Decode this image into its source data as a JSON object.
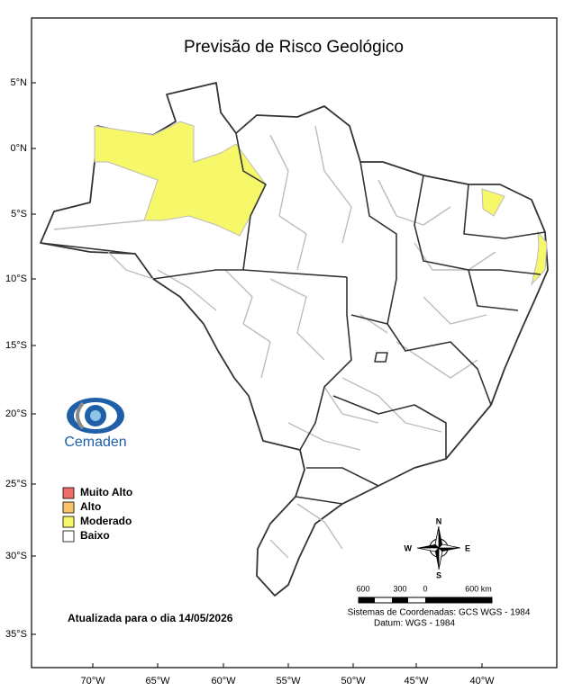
{
  "title": "Previsão de Risco Geológico",
  "latitude_labels": [
    "5°N",
    "0°N",
    "5°S",
    "10°S",
    "15°S",
    "20°S",
    "25°S",
    "30°S",
    "35°S"
  ],
  "longitude_labels": [
    "70°W",
    "65°W",
    "60°W",
    "55°W",
    "50°W",
    "45°W",
    "40°W"
  ],
  "logo": "Cemaden",
  "legend": [
    {
      "label": "Muito Alto",
      "color": "#f26b6b"
    },
    {
      "label": "Alto",
      "color": "#f9c46b"
    },
    {
      "label": "Moderado",
      "color": "#f7f76a"
    },
    {
      "label": "Baixo",
      "color": "#ffffff"
    }
  ],
  "updated": "Atualizada para o dia 14/05/2026",
  "scale_labels": [
    "600",
    "300",
    "0",
    "600 km"
  ],
  "coordinate_system": "Sistemas de Coordenadas: GCS WGS - 1984",
  "datum": "Datum: WGS - 1984",
  "compass": {
    "north": "N",
    "south": "S",
    "east": "E",
    "west": "W"
  }
}
